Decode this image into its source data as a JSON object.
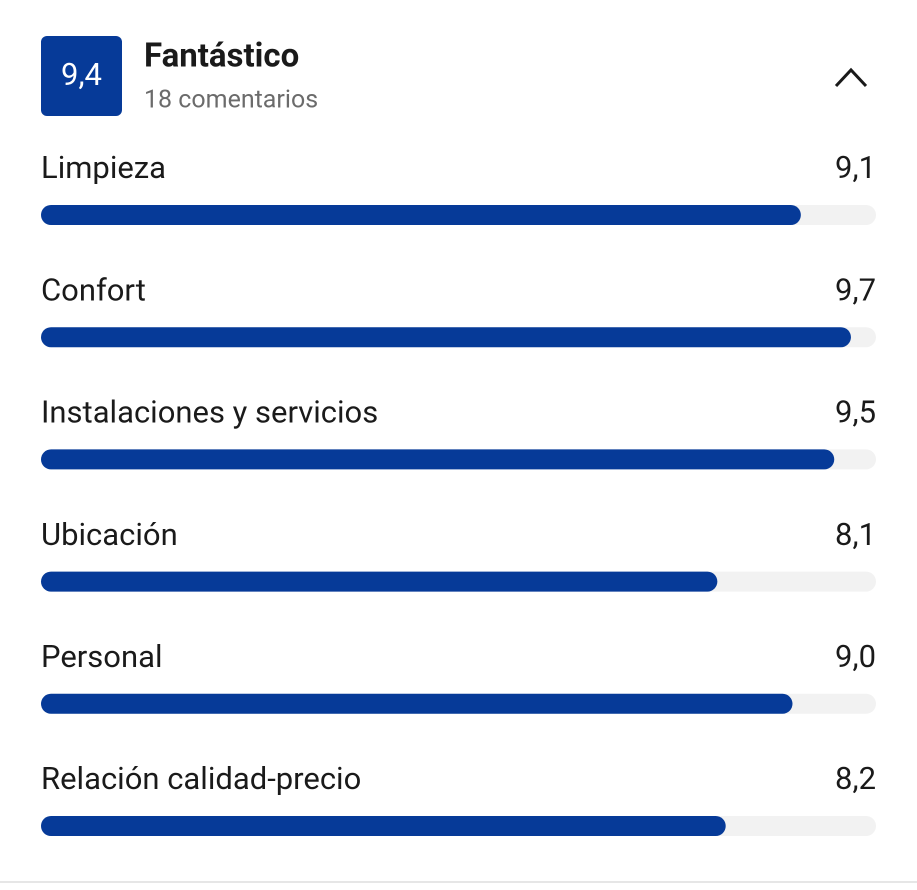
{
  "header": {
    "score": "9,4",
    "title": "Fantástico",
    "subtitle": "18 comentarios"
  },
  "chart_data": {
    "type": "hbar",
    "categories": [
      "Limpieza",
      "Confort",
      "Instalaciones y servicios",
      "Ubicación",
      "Personal",
      "Relación calidad-precio"
    ],
    "values": [
      9.1,
      9.7,
      9.5,
      8.1,
      9.0,
      8.2
    ],
    "value_labels": [
      "9,1",
      "9,7",
      "9,5",
      "8,1",
      "9,0",
      "8,2"
    ],
    "xlim": [
      0,
      10
    ],
    "color": "#063a98",
    "track_color": "#f2f2f2"
  }
}
